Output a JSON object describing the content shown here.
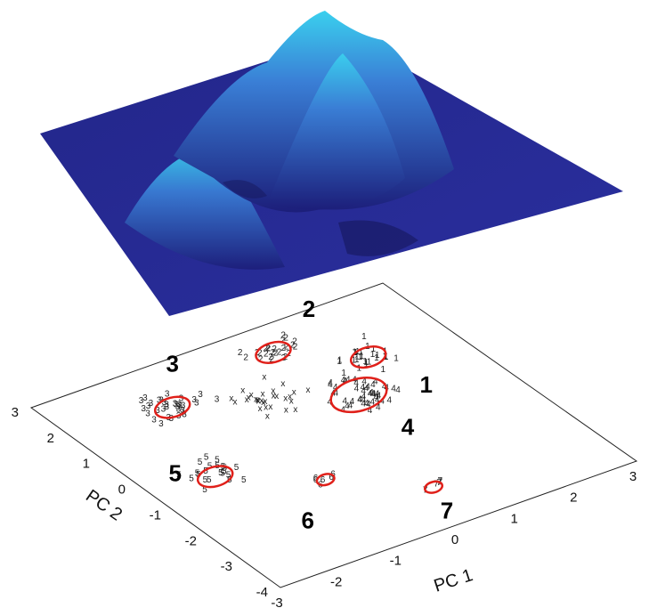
{
  "chart_data": {
    "type": "scatter",
    "title": "",
    "xlabel": "PC 1",
    "ylabel": "PC 2",
    "xlim": [
      -3,
      3
    ],
    "ylim": [
      -4,
      3
    ],
    "x_ticks": [
      "-3",
      "-2",
      "-1",
      "0",
      "1",
      "2",
      "3"
    ],
    "y_ticks": [
      "-4",
      "-3",
      "-2",
      "-1",
      "0",
      "1",
      "2",
      "3"
    ],
    "surface": "3-D density surface (blue shading) drawn above the PC plane, peaks over clusters 1–4",
    "colors": {
      "surface_dark": "#1c1e7a",
      "surface_light": "#3ad0ee",
      "contour": "#e0201a",
      "text": "#111111"
    },
    "clusters": [
      {
        "label": "1",
        "marker": "1",
        "center": [
          1.6,
          1.2
        ]
      },
      {
        "label": "2",
        "marker": "2",
        "center": [
          0.6,
          2.2
        ]
      },
      {
        "label": "3",
        "marker": "3",
        "center": [
          -1.4,
          1.7
        ]
      },
      {
        "label": "4",
        "marker": "4",
        "center": [
          0.9,
          0.3
        ]
      },
      {
        "label": "5",
        "marker": "5",
        "center": [
          -2.0,
          -0.5
        ]
      },
      {
        "label": "6",
        "marker": "6",
        "center": [
          -0.8,
          -1.6
        ]
      },
      {
        "label": "7",
        "marker": "7",
        "center": [
          0.3,
          -2.8
        ]
      },
      {
        "label": "",
        "marker": "x",
        "center": [
          -0.2,
          1.0
        ]
      }
    ]
  }
}
